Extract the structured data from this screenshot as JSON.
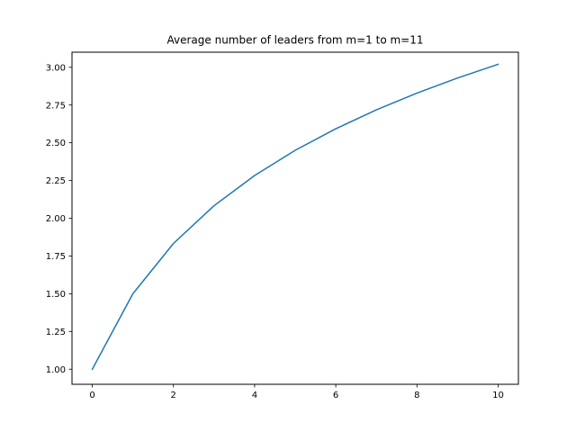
{
  "chart_data": {
    "type": "line",
    "title": "Average number of leaders from m=1 to m=11",
    "xlabel": "",
    "ylabel": "",
    "xlim": [
      -0.5,
      10.5
    ],
    "ylim": [
      0.9,
      3.1
    ],
    "grid": false,
    "x_ticks": [
      0,
      2,
      4,
      6,
      8,
      10
    ],
    "x_tick_labels": [
      "0",
      "2",
      "4",
      "6",
      "8",
      "10"
    ],
    "y_ticks": [
      1.0,
      1.25,
      1.5,
      1.75,
      2.0,
      2.25,
      2.5,
      2.75,
      3.0
    ],
    "y_tick_labels": [
      "1.00",
      "1.25",
      "1.50",
      "1.75",
      "2.00",
      "2.25",
      "2.50",
      "2.75",
      "3.00"
    ],
    "series": [
      {
        "color": "#1f77b4",
        "x": [
          0,
          1,
          2,
          3,
          4,
          5,
          6,
          7,
          8,
          9,
          10
        ],
        "values": [
          1.0,
          1.5,
          1.833,
          2.083,
          2.283,
          2.45,
          2.593,
          2.718,
          2.829,
          2.929,
          3.02
        ]
      }
    ]
  }
}
